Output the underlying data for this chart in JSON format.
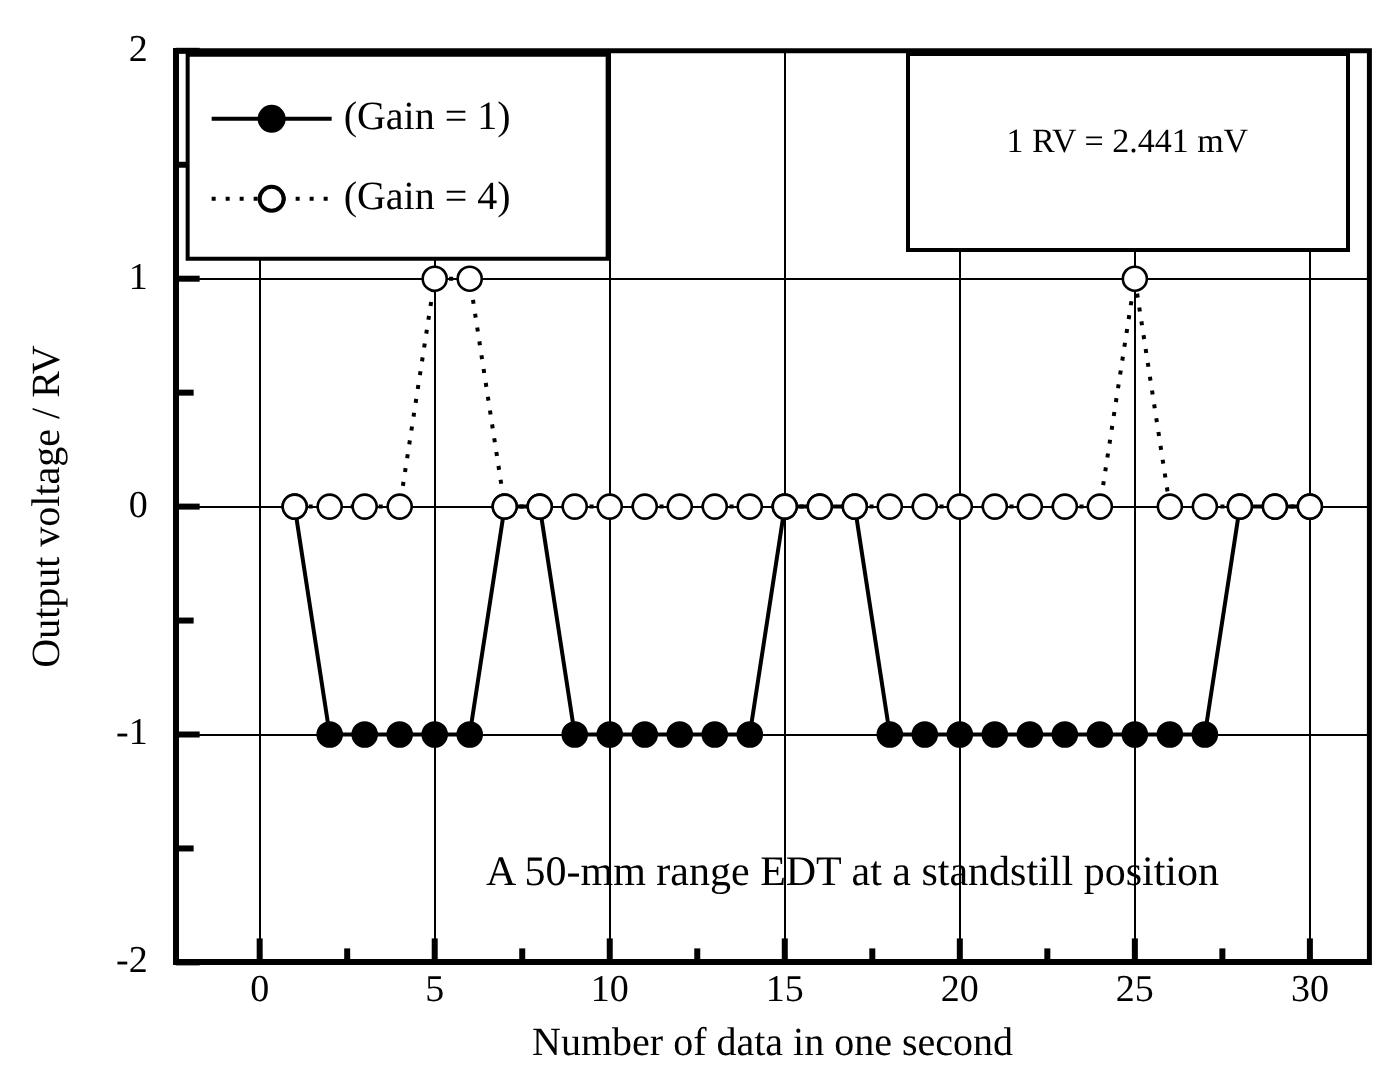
{
  "chart_data": {
    "type": "line",
    "xlabel": "Number of data in one second",
    "ylabel": "Output voltage / RV",
    "x": [
      1,
      2,
      3,
      4,
      5,
      6,
      7,
      8,
      9,
      10,
      11,
      12,
      13,
      14,
      15,
      16,
      17,
      18,
      19,
      20,
      21,
      22,
      23,
      24,
      25,
      26,
      27,
      28,
      29,
      30
    ],
    "series": [
      {
        "name": "(Gain = 1)",
        "color": "#000000",
        "marker": "circle",
        "line_style": "solid",
        "values": [
          0,
          -1,
          -1,
          -1,
          -1,
          -1,
          0,
          0,
          -1,
          -1,
          -1,
          -1,
          -1,
          -1,
          0,
          0,
          0,
          -1,
          -1,
          -1,
          -1,
          -1,
          -1,
          -1,
          -1,
          -1,
          -1,
          0,
          0,
          0
        ]
      },
      {
        "name": "(Gain = 4)",
        "color": "#ffffff",
        "marker": "circle",
        "line_style": "dotted",
        "values": [
          0,
          0,
          0,
          0,
          1,
          1,
          0,
          0,
          0,
          0,
          0,
          0,
          0,
          0,
          0,
          0,
          0,
          0,
          0,
          0,
          0,
          0,
          0,
          0,
          1,
          0,
          0,
          0,
          0,
          0
        ]
      }
    ],
    "xlim": [
      -2.4,
      31.7
    ],
    "xticks": [
      0,
      {
        "value": 2.5,
        "label": null
      },
      5,
      {
        "value": 7.5,
        "label": null
      },
      10,
      {
        "value": 12.5,
        "label": null
      },
      15,
      {
        "value": 17.5,
        "label": null
      },
      20,
      {
        "value": 22.5,
        "label": null
      },
      25,
      {
        "value": 27.5,
        "label": null
      },
      30
    ],
    "ylim": [
      -2,
      2
    ],
    "yticks": [
      -2,
      {
        "value": -1.5,
        "label": null
      },
      -1,
      {
        "value": -0.5,
        "label": null
      },
      0,
      {
        "value": 0.5,
        "label": null
      },
      1,
      {
        "value": 1.5,
        "label": null
      },
      2
    ],
    "grid": true,
    "legend": "top left",
    "annotations": [
      "1 RV = 2.441 mV",
      "A 50-mm range EDT at a standstill position"
    ]
  }
}
